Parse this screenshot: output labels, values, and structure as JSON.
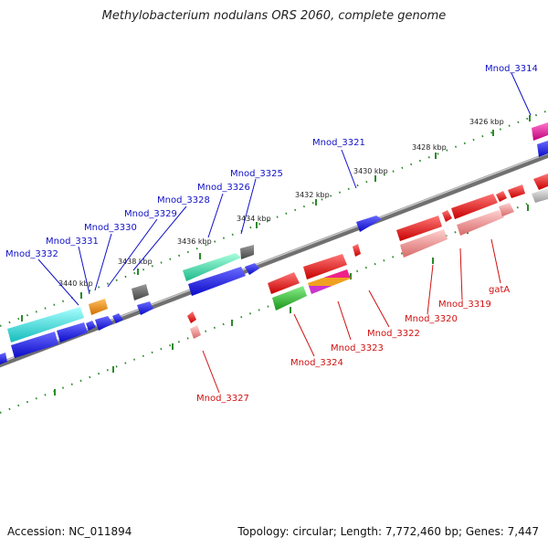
{
  "title": "Methylobacterium nodulans ORS 2060, complete genome",
  "footer": {
    "accession": "Accession: NC_011894",
    "topology": "Topology: circular; Length: 7,772,460 bp; Genes: 7,447"
  },
  "scale": {
    "tick_labels": [
      "3426 kbp",
      "3428 kbp",
      "3430 kbp",
      "3432 kbp",
      "3434 kbp",
      "3436 kbp",
      "3438 kbp",
      "3440 kbp"
    ]
  },
  "gene_labels_forward": [
    "Mnod_3314",
    "Mnod_3321",
    "Mnod_3325",
    "Mnod_3326",
    "Mnod_3328",
    "Mnod_3329",
    "Mnod_3330",
    "Mnod_3331",
    "Mnod_3332"
  ],
  "gene_labels_reverse": [
    "gatA",
    "Mnod_3319",
    "Mnod_3320",
    "Mnod_3322",
    "Mnod_3323",
    "Mnod_3324",
    "Mnod_3327"
  ],
  "colors": {
    "forward_label": "#1010c8",
    "reverse_label": "#d01010",
    "backbone": "#888888",
    "tick": "#2a8a2a",
    "blue": "#1a1aee",
    "cyan": "#22dddd",
    "teal": "#33ddaa",
    "orange": "#f08a10",
    "gray": "#666666",
    "red": "#ee1111",
    "pink": "#f08888",
    "magenta": "#ee22aa",
    "green": "#33bb33",
    "silver": "#bbbbbb"
  }
}
